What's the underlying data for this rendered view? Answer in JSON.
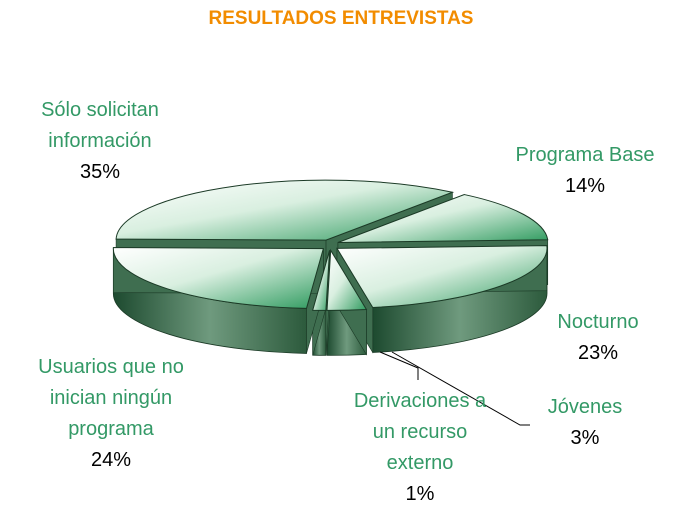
{
  "chart_data": {
    "type": "pie",
    "title": "RESULTADOS ENTREVISTAS",
    "categories": [
      "Sólo solicitan información",
      "Programa Base",
      "Nocturno",
      "Jóvenes",
      "Derivaciones a un recurso externo",
      "Usuarios que no inician ningún programa"
    ],
    "values": [
      35,
      14,
      23,
      3,
      1,
      24
    ],
    "value_labels": [
      "35%",
      "14%",
      "23%",
      "3%",
      "1%",
      "24%"
    ],
    "label_color": "#339966",
    "title_color": "#f28c00"
  }
}
